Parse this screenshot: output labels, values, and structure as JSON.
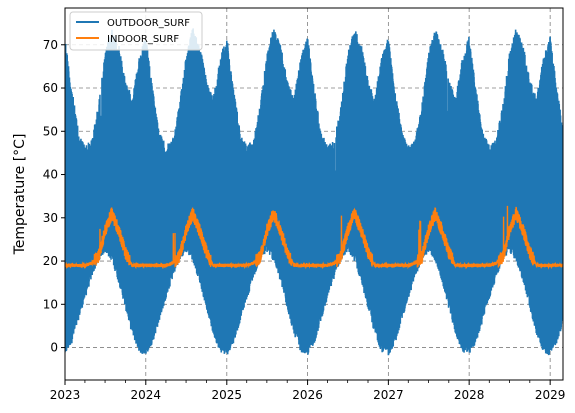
{
  "chart_data": {
    "type": "line",
    "ylabel": "Temperature [°C]",
    "xlabel": "",
    "x_range": [
      "2023-01-01",
      "2029-02-28"
    ],
    "ylim": [
      -7.5,
      78.5
    ],
    "grid": true,
    "grid_style": "dashed",
    "legend_position": "top-left",
    "x_ticks": [
      "2023",
      "2024",
      "2025",
      "2026",
      "2027",
      "2028",
      "2029"
    ],
    "y_ticks": [
      0,
      10,
      20,
      30,
      40,
      50,
      60,
      70
    ],
    "series": [
      {
        "name": "OUTDOOR_SURF",
        "color": "#1f77b4",
        "style": "dense daily oscillation",
        "daily_min_monthly": [
          -2,
          1,
          6,
          11,
          16,
          20,
          22,
          20,
          15,
          9,
          3,
          -1
        ],
        "daily_max_monthly": [
          72,
          60,
          50,
          47,
          48,
          56,
          68,
          74,
          70,
          62,
          58,
          67
        ]
      },
      {
        "name": "INDOOR_SURF",
        "color": "#ff7f0e",
        "style": "line with small noise",
        "monthly_mean": [
          19,
          19,
          19,
          19,
          19.5,
          21,
          27,
          31,
          27,
          22,
          19,
          19
        ]
      }
    ]
  }
}
